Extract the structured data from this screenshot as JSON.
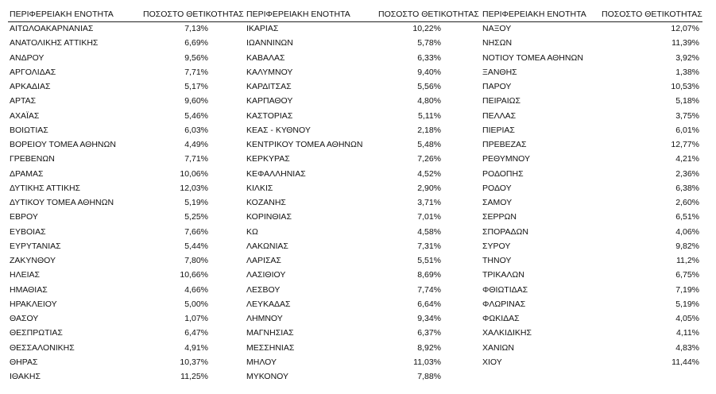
{
  "table": {
    "groups": [
      {
        "headers": [
          "ΠΕΡΙΦΕΡΕΙΑΚΗ ΕΝΟΤΗΤΑ",
          "ΠΟΣΟΣΤΟ ΘΕΤΙΚΟΤΗΤΑΣ"
        ],
        "rows": [
          [
            "ΑΙΤΩΛΟΑΚΑΡΝΑΝΙΑΣ",
            "7,13%"
          ],
          [
            "ΑΝΑΤΟΛΙΚΗΣ ΑΤΤΙΚΗΣ",
            "6,69%"
          ],
          [
            "ΑΝΔΡΟΥ",
            "9,56%"
          ],
          [
            "ΑΡΓΟΛΙΔΑΣ",
            "7,71%"
          ],
          [
            "ΑΡΚΑΔΙΑΣ",
            "5,17%"
          ],
          [
            "ΑΡΤΑΣ",
            "9,60%"
          ],
          [
            "ΑΧΑΪΑΣ",
            "5,46%"
          ],
          [
            "ΒΟΙΩΤΙΑΣ",
            "6,03%"
          ],
          [
            "ΒΟΡΕΙΟΥ ΤΟΜΕΑ ΑΘΗΝΩΝ",
            "4,49%"
          ],
          [
            "ΓΡΕΒΕΝΩΝ",
            "7,71%"
          ],
          [
            "ΔΡΑΜΑΣ",
            "10,06%"
          ],
          [
            "ΔΥΤΙΚΗΣ ΑΤΤΙΚΗΣ",
            "12,03%"
          ],
          [
            "ΔΥΤΙΚΟΥ ΤΟΜΕΑ ΑΘΗΝΩΝ",
            "5,19%"
          ],
          [
            "ΕΒΡΟΥ",
            "5,25%"
          ],
          [
            "ΕΥΒΟΙΑΣ",
            "7,66%"
          ],
          [
            "ΕΥΡΥΤΑΝΙΑΣ",
            "5,44%"
          ],
          [
            "ΖΑΚΥΝΘΟΥ",
            "7,80%"
          ],
          [
            "ΗΛΕΙΑΣ",
            "10,66%"
          ],
          [
            "ΗΜΑΘΙΑΣ",
            "4,66%"
          ],
          [
            "ΗΡΑΚΛΕΙΟΥ",
            "5,00%"
          ],
          [
            "ΘΑΣΟΥ",
            "1,07%"
          ],
          [
            "ΘΕΣΠΡΩΤΙΑΣ",
            "6,47%"
          ],
          [
            "ΘΕΣΣΑΛΟΝΙΚΗΣ",
            "4,91%"
          ],
          [
            "ΘΗΡΑΣ",
            "10,37%"
          ],
          [
            "ΙΘΑΚΗΣ",
            "11,25%"
          ]
        ]
      },
      {
        "headers": [
          "ΠΕΡΙΦΕΡΕΙΑΚΗ ΕΝΟΤΗΤΑ",
          "ΠΟΣΟΣΤΟ ΘΕΤΙΚΟΤΗΤΑΣ"
        ],
        "rows": [
          [
            "ΙΚΑΡΙΑΣ",
            "10,22%"
          ],
          [
            "ΙΩΑΝΝΙΝΩΝ",
            "5,78%"
          ],
          [
            "ΚΑΒΑΛΑΣ",
            "6,33%"
          ],
          [
            "ΚΑΛΥΜΝΟΥ",
            "9,40%"
          ],
          [
            "ΚΑΡΔΙΤΣΑΣ",
            "5,56%"
          ],
          [
            "ΚΑΡΠΑΘΟΥ",
            "4,80%"
          ],
          [
            "ΚΑΣΤΟΡΙΑΣ",
            "5,11%"
          ],
          [
            "ΚΕΑΣ - ΚΥΘΝΟΥ",
            "2,18%"
          ],
          [
            "ΚΕΝΤΡΙΚΟΥ ΤΟΜΕΑ ΑΘΗΝΩΝ",
            "5,48%"
          ],
          [
            "ΚΕΡΚΥΡΑΣ",
            "7,26%"
          ],
          [
            "ΚΕΦΑΛΛΗΝΙΑΣ",
            "4,52%"
          ],
          [
            "ΚΙΛΚΙΣ",
            "2,90%"
          ],
          [
            "ΚΟΖΑΝΗΣ",
            "3,71%"
          ],
          [
            "ΚΟΡΙΝΘΙΑΣ",
            "7,01%"
          ],
          [
            "ΚΩ",
            "4,58%"
          ],
          [
            "ΛΑΚΩΝΙΑΣ",
            "7,31%"
          ],
          [
            "ΛΑΡΙΣΑΣ",
            "5,51%"
          ],
          [
            "ΛΑΣΙΘΙΟΥ",
            "8,69%"
          ],
          [
            "ΛΕΣΒΟΥ",
            "7,74%"
          ],
          [
            "ΛΕΥΚΑΔΑΣ",
            "6,64%"
          ],
          [
            "ΛΗΜΝΟΥ",
            "9,34%"
          ],
          [
            "ΜΑΓΝΗΣΙΑΣ",
            "6,37%"
          ],
          [
            "ΜΕΣΣΗΝΙΑΣ",
            "8,92%"
          ],
          [
            "ΜΗΛΟΥ",
            "11,03%"
          ],
          [
            "ΜΥΚΟΝΟΥ",
            "7,88%"
          ]
        ]
      },
      {
        "headers": [
          "ΠΕΡΙΦΕΡΕΙΑΚΗ ΕΝΟΤΗΤΑ",
          "ΠΟΣΟΣΤΟ ΘΕΤΙΚΟΤΗΤΑΣ"
        ],
        "rows": [
          [
            "ΝΑΞΟΥ",
            "12,07%"
          ],
          [
            "ΝΗΣΩΝ",
            "11,39%"
          ],
          [
            "ΝΟΤΙΟΥ ΤΟΜΕΑ ΑΘΗΝΩΝ",
            "3,92%"
          ],
          [
            "ΞΑΝΘΗΣ",
            "1,38%"
          ],
          [
            "ΠΑΡΟΥ",
            "10,53%"
          ],
          [
            "ΠΕΙΡΑΙΩΣ",
            "5,18%"
          ],
          [
            "ΠΕΛΛΑΣ",
            "3,75%"
          ],
          [
            "ΠΙΕΡΙΑΣ",
            "6,01%"
          ],
          [
            "ΠΡΕΒΕΖΑΣ",
            "12,77%"
          ],
          [
            "ΡΕΘΥΜΝΟΥ",
            "4,21%"
          ],
          [
            "ΡΟΔΟΠΗΣ",
            "2,36%"
          ],
          [
            "ΡΟΔΟΥ",
            "6,38%"
          ],
          [
            "ΣΑΜΟΥ",
            "2,60%"
          ],
          [
            "ΣΕΡΡΩΝ",
            "6,51%"
          ],
          [
            "ΣΠΟΡΑΔΩΝ",
            "4,06%"
          ],
          [
            "ΣΥΡΟΥ",
            "9,82%"
          ],
          [
            "ΤΗΝΟΥ",
            "11,2%"
          ],
          [
            "ΤΡΙΚΑΛΩΝ",
            "6,75%"
          ],
          [
            "ΦΘΙΩΤΙΔΑΣ",
            "7,19%"
          ],
          [
            "ΦΛΩΡΙΝΑΣ",
            "5,19%"
          ],
          [
            "ΦΩΚΙΔΑΣ",
            "4,05%"
          ],
          [
            "ΧΑΛΚΙΔΙΚΗΣ",
            "4,11%"
          ],
          [
            "ΧΑΝΙΩΝ",
            "4,83%"
          ],
          [
            "ΧΙΟΥ",
            "11,44%"
          ]
        ]
      }
    ]
  }
}
